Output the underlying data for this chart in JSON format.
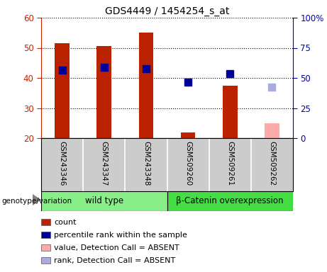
{
  "title": "GDS4449 / 1454254_s_at",
  "samples": [
    "GSM243346",
    "GSM243347",
    "GSM243348",
    "GSM509260",
    "GSM509261",
    "GSM509262"
  ],
  "count_values": [
    51.5,
    50.5,
    55.0,
    22.0,
    37.5,
    null
  ],
  "count_absent": [
    null,
    null,
    null,
    null,
    null,
    25.0
  ],
  "rank_values": [
    42.5,
    43.5,
    43.0,
    38.5,
    41.5,
    null
  ],
  "rank_absent": [
    null,
    null,
    null,
    null,
    null,
    37.0
  ],
  "ylim_left": [
    20,
    60
  ],
  "ylim_right": [
    0,
    100
  ],
  "yticks_left": [
    20,
    30,
    40,
    50,
    60
  ],
  "ytick_labels_right": [
    "0",
    "25",
    "50",
    "75",
    "100%"
  ],
  "bar_color": "#BB2200",
  "bar_absent_color": "#FFAAAA",
  "rank_color": "#000099",
  "rank_absent_color": "#AAAADD",
  "bar_width": 0.35,
  "marker_size": 7,
  "left_axis_color": "#CC2200",
  "right_axis_color": "#0000BB",
  "sample_box_color": "#CCCCCC",
  "wt_color": "#88EE88",
  "bc_color": "#44DD44",
  "legend_items": [
    {
      "label": "count",
      "color": "#BB2200"
    },
    {
      "label": "percentile rank within the sample",
      "color": "#000099"
    },
    {
      "label": "value, Detection Call = ABSENT",
      "color": "#FFAAAA"
    },
    {
      "label": "rank, Detection Call = ABSENT",
      "color": "#AAAADD"
    }
  ]
}
